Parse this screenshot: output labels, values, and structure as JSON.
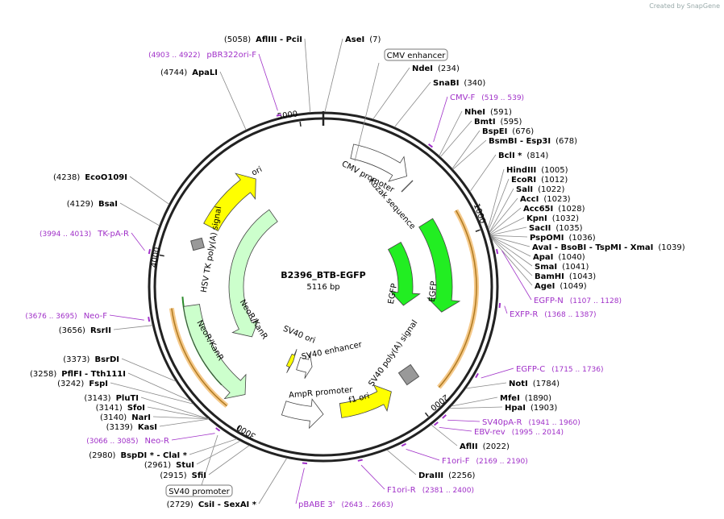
{
  "header": {
    "credit": "Created by SnapGene"
  },
  "plasmid": {
    "name": "B2396_BTB-EGFP",
    "length": "5116 bp"
  },
  "ticks": [
    "1000",
    "2000",
    "3000",
    "4000",
    "5000"
  ],
  "sites": [
    {
      "name": "AseI",
      "position": "(7)"
    },
    {
      "name": "NdeI",
      "position": "(234)"
    },
    {
      "name": "SnaBI",
      "position": "(340)"
    },
    {
      "name": "NheI",
      "position": "(591)"
    },
    {
      "name": "BmtI",
      "position": "(595)"
    },
    {
      "name": "BspEI",
      "position": "(676)"
    },
    {
      "name": "BsmBI - Esp3I",
      "position": "(678)"
    },
    {
      "name": "BclI *",
      "position": "(814)"
    },
    {
      "name": "HindIII",
      "position": "(1005)"
    },
    {
      "name": "EcoRI",
      "position": "(1012)"
    },
    {
      "name": "SalI",
      "position": "(1022)"
    },
    {
      "name": "AccI",
      "position": "(1023)"
    },
    {
      "name": "Acc65I",
      "position": "(1028)"
    },
    {
      "name": "KpnI",
      "position": "(1032)"
    },
    {
      "name": "SacII",
      "position": "(1035)"
    },
    {
      "name": "PspOMI",
      "position": "(1036)"
    },
    {
      "name": "AvaI - BsoBI - TspMI - XmaI",
      "position": "(1039)"
    },
    {
      "name": "ApaI",
      "position": "(1040)"
    },
    {
      "name": "SmaI",
      "position": "(1041)"
    },
    {
      "name": "BamHI",
      "position": "(1043)"
    },
    {
      "name": "AgeI",
      "position": "(1049)"
    },
    {
      "name": "NotI",
      "position": "(1784)"
    },
    {
      "name": "MfeI",
      "position": "(1890)"
    },
    {
      "name": "HpaI",
      "position": "(1903)"
    },
    {
      "name": "AflII",
      "position": "(2022)"
    },
    {
      "name": "DraIII",
      "position": "(2256)"
    },
    {
      "name": "AflIII - PciI",
      "position": "(5058)"
    },
    {
      "name": "ApaLI",
      "position": "(4744)"
    },
    {
      "name": "EcoO109I",
      "position": "(4238)"
    },
    {
      "name": "BsaI",
      "position": "(4129)"
    },
    {
      "name": "RsrII",
      "position": "(3656)"
    },
    {
      "name": "BsrDI",
      "position": "(3373)"
    },
    {
      "name": "PflFI - Tth111I",
      "position": "(3258)"
    },
    {
      "name": "FspI",
      "position": "(3242)"
    },
    {
      "name": "PluTI",
      "position": "(3143)"
    },
    {
      "name": "SfoI",
      "position": "(3141)"
    },
    {
      "name": "NarI",
      "position": "(3140)"
    },
    {
      "name": "KasI",
      "position": "(3139)"
    },
    {
      "name": "BspDI * - ClaI *",
      "position": "(2980)"
    },
    {
      "name": "StuI",
      "position": "(2961)"
    },
    {
      "name": "SfiI",
      "position": "(2915)"
    },
    {
      "name": "CsiI - SexAI *",
      "position": "(2729)"
    }
  ],
  "primers": [
    {
      "name": "CMV-F",
      "range": "(519 .. 539)"
    },
    {
      "name": "EGFP-N",
      "range": "(1107 .. 1128)"
    },
    {
      "name": "EXFP-R",
      "range": "(1368 .. 1387)"
    },
    {
      "name": "EGFP-C",
      "range": "(1715 .. 1736)"
    },
    {
      "name": "SV40pA-R",
      "range": "(1941 .. 1960)"
    },
    {
      "name": "EBV-rev",
      "range": "(1995 .. 2014)"
    },
    {
      "name": "F1ori-F",
      "range": "(2169 .. 2190)"
    },
    {
      "name": "F1ori-R",
      "range": "(2381 .. 2400)"
    },
    {
      "name": "pBABE 3'",
      "range": "(2643 .. 2663)"
    },
    {
      "name": "pBR322ori-F",
      "range": "(4903 .. 4922)"
    },
    {
      "name": "TK-pA-R",
      "range": "(3994 .. 4013)"
    },
    {
      "name": "Neo-F",
      "range": "(3676 .. 3695)"
    },
    {
      "name": "Neo-R",
      "range": "(3066 .. 3085)"
    }
  ],
  "boxed_features": [
    "CMV enhancer",
    "SV40 promoter"
  ],
  "features": [
    "ori",
    "CMV promoter",
    "Kozak sequence",
    "HSV TK poly(A) signal",
    "EGFP",
    "EGFP",
    "NeoR/KanR",
    "NeoR/KanR",
    "SV40 ori",
    "SV40 enhancer",
    "SV40 poly(A) signal",
    "AmpR promoter",
    "f1 ori"
  ]
}
